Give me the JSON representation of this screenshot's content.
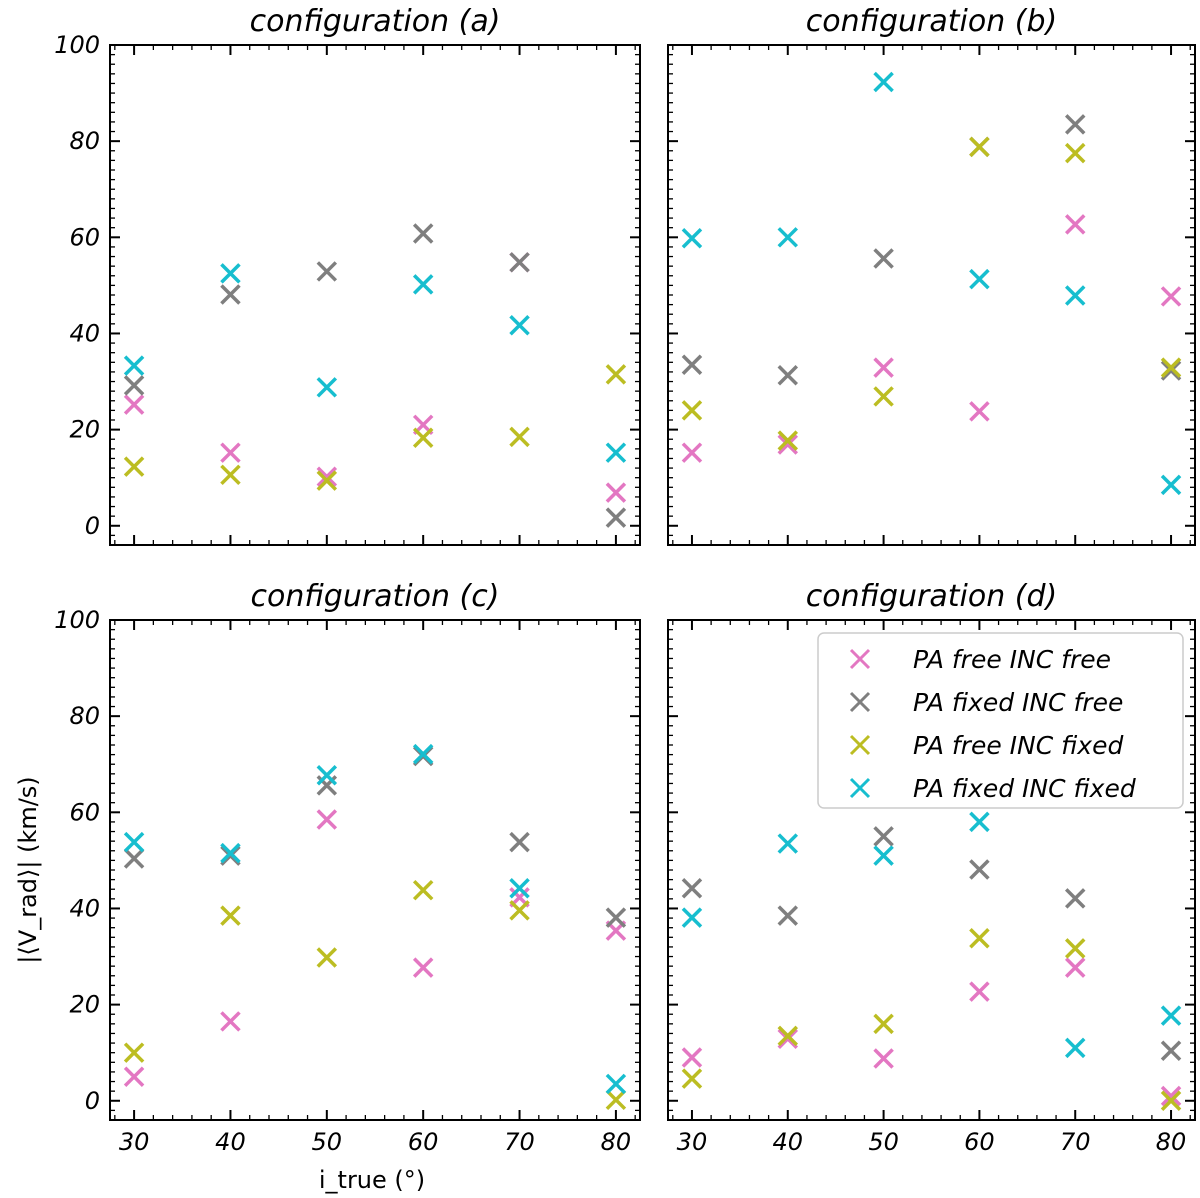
{
  "chart_data": {
    "type": "scatter",
    "marker": "x",
    "xlabel": "i_true (°)",
    "ylabel": "|⟨V_rad⟩| (km/s)",
    "xlim": [
      27.5,
      82.5
    ],
    "ylim": [
      -4,
      100
    ],
    "xticks": [
      30,
      40,
      50,
      60,
      70,
      80
    ],
    "yticks": [
      0,
      20,
      40,
      60,
      80,
      100
    ],
    "grid": false,
    "legend": {
      "panel": 3,
      "placement": "top-right"
    },
    "series_meta": [
      {
        "name": "PA free INC free",
        "color": "#e377c2"
      },
      {
        "name": "PA fixed INC free",
        "color": "#7f7f7f"
      },
      {
        "name": "PA free INC fixed",
        "color": "#bcbd22"
      },
      {
        "name": "PA fixed INC fixed",
        "color": "#17becf"
      }
    ],
    "x": [
      30,
      40,
      50,
      60,
      70,
      80
    ],
    "panels": [
      {
        "title": "configuration (a)",
        "series": [
          [
            25.2,
            15.2,
            10.2,
            21.0,
            54.8,
            6.9
          ],
          [
            29.2,
            48.1,
            52.9,
            60.8,
            54.8,
            1.7
          ],
          [
            12.3,
            10.6,
            9.4,
            18.3,
            18.5,
            31.5
          ],
          [
            33.3,
            52.5,
            28.8,
            50.2,
            41.7,
            15.2
          ]
        ]
      },
      {
        "title": "configuration (b)",
        "series": [
          [
            15.2,
            16.9,
            32.9,
            23.8,
            62.7,
            47.7
          ],
          [
            33.5,
            31.3,
            55.6,
            78.8,
            83.5,
            32.3
          ],
          [
            24.0,
            17.7,
            26.9,
            78.8,
            77.5,
            32.9
          ],
          [
            59.8,
            60.0,
            92.3,
            51.3,
            47.9,
            8.5
          ]
        ]
      },
      {
        "title": "configuration (c)",
        "series": [
          [
            5.0,
            16.5,
            58.5,
            27.7,
            42.3,
            35.4
          ],
          [
            50.4,
            51.0,
            65.6,
            71.7,
            53.8,
            38.1
          ],
          [
            10.0,
            38.5,
            29.8,
            43.8,
            39.6,
            0.2
          ],
          [
            53.8,
            51.5,
            67.7,
            72.1,
            44.2,
            3.5
          ]
        ]
      },
      {
        "title": "configuration (d)",
        "series": [
          [
            9.0,
            12.9,
            8.8,
            22.7,
            27.7,
            1.0
          ],
          [
            44.2,
            38.5,
            55.0,
            48.1,
            42.1,
            10.4
          ],
          [
            4.6,
            13.5,
            16.0,
            33.8,
            31.7,
            0.0
          ],
          [
            38.1,
            53.5,
            51.0,
            58.0,
            11.0,
            17.7
          ]
        ]
      }
    ]
  }
}
